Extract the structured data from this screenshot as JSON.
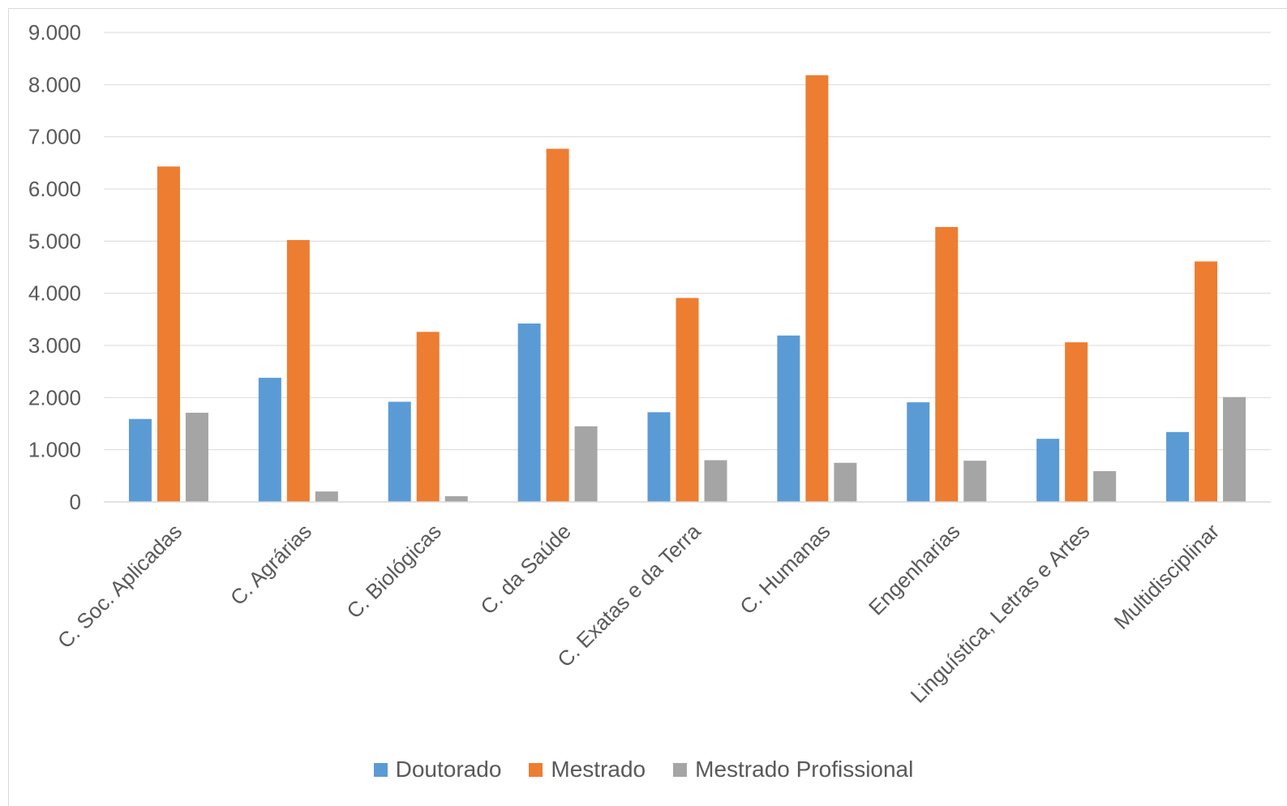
{
  "chart_data": {
    "type": "bar",
    "title": "",
    "xlabel": "",
    "ylabel": "",
    "ylim": [
      0,
      9000
    ],
    "yticks": [
      0,
      1000,
      2000,
      3000,
      4000,
      5000,
      6000,
      7000,
      8000,
      9000
    ],
    "ytick_labels": [
      "0",
      "1.000",
      "2.000",
      "3.000",
      "4.000",
      "5.000",
      "6.000",
      "7.000",
      "8.000",
      "9.000"
    ],
    "grid": true,
    "legend_position": "bottom",
    "categories": [
      "C. Soc. Aplicadas",
      "C. Agrárias",
      "C. Biológicas",
      "C. da Saúde",
      "C. Exatas e da Terra",
      "C. Humanas",
      "Engenharias",
      "Linguística, Letras e Artes",
      "Multidisciplinar"
    ],
    "series": [
      {
        "name": "Doutorado",
        "color": "#5b9bd5",
        "values": [
          1590,
          2380,
          1920,
          3420,
          1720,
          3190,
          1910,
          1210,
          1340
        ]
      },
      {
        "name": "Mestrado",
        "color": "#ed7d31",
        "values": [
          6430,
          5020,
          3260,
          6770,
          3910,
          8180,
          5270,
          3060,
          4610
        ]
      },
      {
        "name": "Mestrado Profissional",
        "color": "#a5a5a5",
        "values": [
          1710,
          200,
          110,
          1450,
          800,
          750,
          790,
          590,
          2010
        ]
      }
    ]
  }
}
